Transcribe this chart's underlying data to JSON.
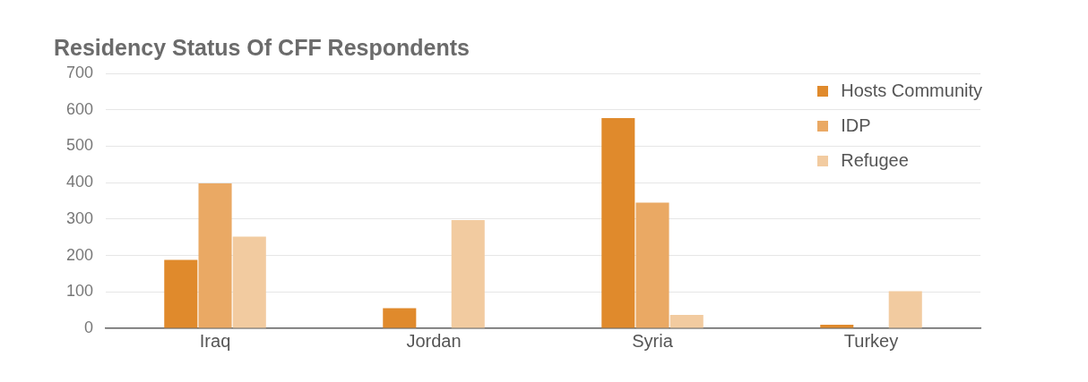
{
  "chart_data": {
    "type": "bar",
    "title": "Residency Status Of CFF Respondents",
    "categories": [
      "Iraq",
      "Jordan",
      "Syria",
      "Turkey"
    ],
    "series": [
      {
        "name": "Hosts Community",
        "color": "#e08a2c",
        "values": [
          188,
          55,
          577,
          10
        ]
      },
      {
        "name": "IDP",
        "color": "#eaa964",
        "values": [
          398,
          0,
          345,
          0
        ]
      },
      {
        "name": "Refugee",
        "color": "#f2cba0",
        "values": [
          252,
          297,
          37,
          102
        ]
      }
    ],
    "ylim": [
      0,
      700
    ],
    "yticks": [
      0,
      100,
      200,
      300,
      400,
      500,
      600,
      700
    ],
    "grid": "y",
    "legend": "top right"
  }
}
